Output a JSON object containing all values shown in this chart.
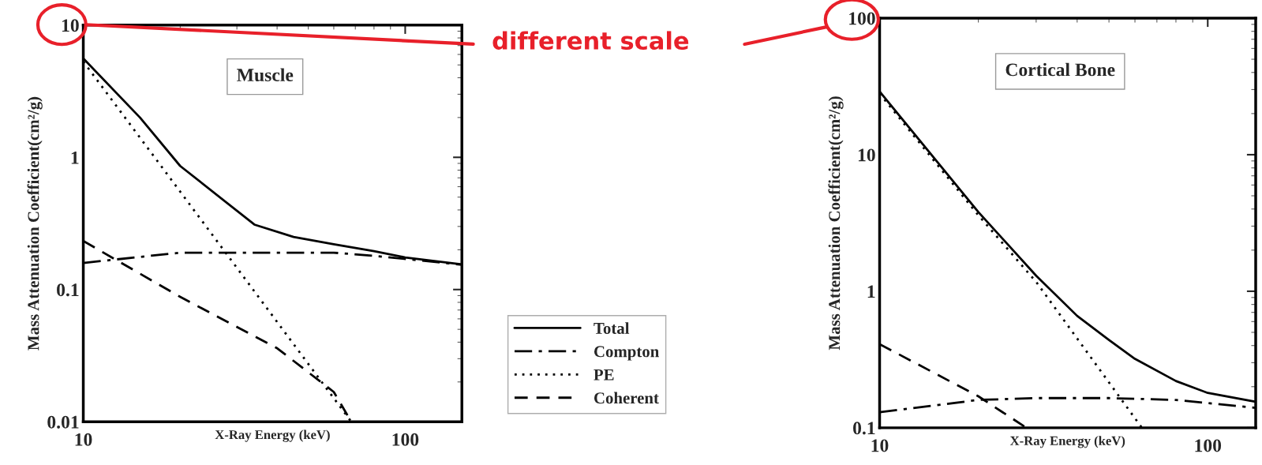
{
  "chart_data": [
    {
      "type": "line",
      "title": "Muscle",
      "xlabel": "X-Ray Energy (keV)",
      "ylabel": "Mass Attenuation Coefficient(cm²/g)",
      "log": "xy",
      "xlim": [
        10,
        150
      ],
      "ylim": [
        0.01,
        10
      ],
      "xticks": [
        10,
        100
      ],
      "yticks": [
        0.01,
        0.1,
        1,
        10
      ],
      "legend": "bottom right",
      "annotations": [
        "different scale"
      ],
      "series": [
        {
          "name": "Total",
          "color": "#000000",
          "line_style": "solid",
          "x": [
            10,
            15,
            20,
            34,
            45,
            60,
            80,
            100,
            150
          ],
          "values": [
            5.6,
            2.0,
            0.86,
            0.31,
            0.25,
            0.22,
            0.195,
            0.175,
            0.155
          ]
        },
        {
          "name": "Compton",
          "color": "#000000",
          "line_style": "dashdot",
          "x": [
            10,
            20,
            40,
            60,
            80,
            150
          ],
          "values": [
            0.159,
            0.19,
            0.19,
            0.19,
            0.18,
            0.154
          ]
        },
        {
          "name": "PE",
          "color": "#000000",
          "line_style": "dotted",
          "x": [
            10,
            20,
            30,
            68
          ],
          "values": [
            5.3,
            0.55,
            0.146,
            0.01
          ]
        },
        {
          "name": "Coherent",
          "color": "#000000",
          "line_style": "dashed",
          "x": [
            10,
            20,
            40,
            60,
            68
          ],
          "values": [
            0.233,
            0.088,
            0.036,
            0.0168,
            0.01
          ]
        }
      ]
    },
    {
      "type": "line",
      "title": "Cortical Bone",
      "xlabel": "X-Ray Energy (keV)",
      "ylabel": "Mass Attenuation Coefficient(cm²/g)",
      "log": "xy",
      "xlim": [
        10,
        140
      ],
      "ylim": [
        0.1,
        100
      ],
      "xticks": [
        10,
        100
      ],
      "yticks": [
        0.1,
        1,
        10,
        100
      ],
      "series": [
        {
          "color": "#000000",
          "line_style": "solid",
          "x": [
            10,
            20,
            30,
            40,
            50,
            60,
            80,
            100,
            140
          ],
          "values": [
            29,
            3.8,
            1.3,
            0.66,
            0.44,
            0.32,
            0.22,
            0.18,
            0.155
          ]
        },
        {
          "color": "#000000",
          "line_style": "dashdot",
          "x": [
            10,
            20,
            30,
            50,
            80,
            140
          ],
          "values": [
            0.13,
            0.16,
            0.165,
            0.165,
            0.16,
            0.14
          ]
        },
        {
          "color": "#000000",
          "line_style": "dotted",
          "x": [
            10,
            20,
            30,
            50,
            63
          ],
          "values": [
            28,
            3.6,
            1.17,
            0.215,
            0.1
          ]
        },
        {
          "color": "#000000",
          "line_style": "dashed",
          "x": [
            10,
            20,
            28
          ],
          "values": [
            0.41,
            0.17,
            0.1
          ]
        }
      ]
    }
  ]
}
